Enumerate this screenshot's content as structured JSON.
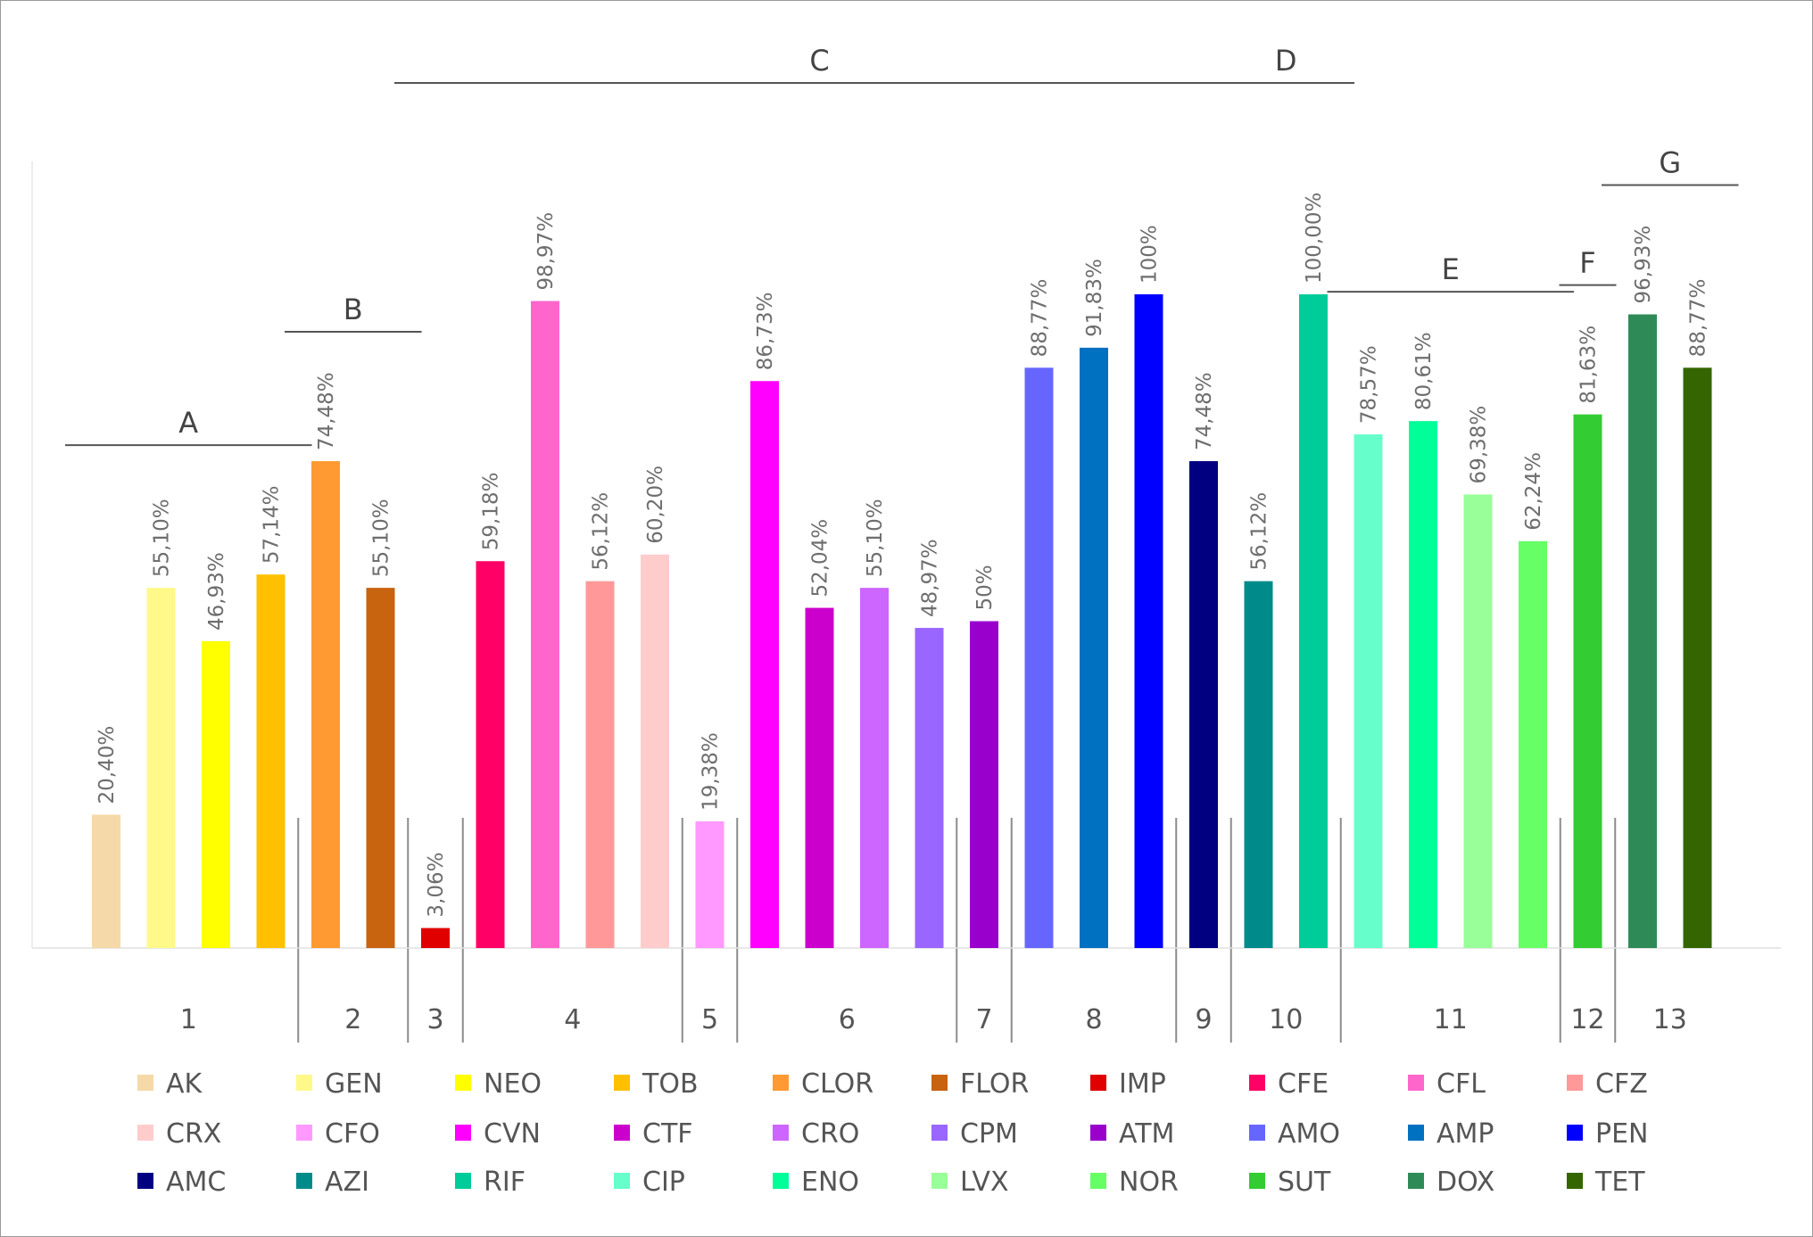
{
  "chart_data": {
    "type": "bar",
    "ylim": [
      0,
      100
    ],
    "grid": false,
    "legend_position": "bottom",
    "categories": [
      "AK",
      "GEN",
      "NEO",
      "TOB",
      "CLOR",
      "FLOR",
      "IMP",
      "CFE",
      "CFL",
      "CFZ",
      "CRX",
      "CFO",
      "CVN",
      "CTF",
      "CRO",
      "CPM",
      "ATM",
      "AMO",
      "AMP",
      "PEN",
      "AMC",
      "AZI",
      "RIF",
      "CIP",
      "ENO",
      "LVX",
      "NOR",
      "SUT",
      "DOX",
      "TET"
    ],
    "values": [
      20.4,
      55.1,
      46.93,
      57.14,
      74.48,
      55.1,
      3.06,
      59.18,
      98.97,
      56.12,
      60.2,
      19.38,
      86.73,
      52.04,
      55.1,
      48.97,
      50,
      88.77,
      91.83,
      100,
      74.48,
      56.12,
      100.0,
      78.57,
      80.61,
      69.38,
      62.24,
      81.63,
      96.93,
      88.77
    ],
    "data_labels": [
      "20,40%",
      "55,10%",
      "46,93%",
      "57,14%",
      "74,48%",
      "55,10%",
      "3,06%",
      "59,18%",
      "98,97%",
      "56,12%",
      "60,20%",
      "19,38%",
      "86,73%",
      "52,04%",
      "55,10%",
      "48,97%",
      "50%",
      "88,77%",
      "91,83%",
      "100%",
      "74,48%",
      "56,12%",
      "100,00%",
      "78,57%",
      "80,61%",
      "69,38%",
      "62,24%",
      "81,63%",
      "96,93%",
      "88,77%"
    ],
    "colors": [
      "#f5d9a8",
      "#fff98a",
      "#ffff00",
      "#ffc000",
      "#ff9a33",
      "#c8630f",
      "#e00000",
      "#ff0066",
      "#ff66cc",
      "#ff9999",
      "#ffcccc",
      "#ff99ff",
      "#ff00ff",
      "#cc00cc",
      "#cc66ff",
      "#9966ff",
      "#9900cc",
      "#6666ff",
      "#0070c0",
      "#0000ff",
      "#000080",
      "#008b8b",
      "#00cc99",
      "#66ffcc",
      "#00ff99",
      "#99ff99",
      "#66ff66",
      "#33cc33",
      "#2e8b57",
      "#336600"
    ],
    "class_numbers": [
      "1",
      "2",
      "3",
      "4",
      "5",
      "6",
      "7",
      "8",
      "9",
      "10",
      "11",
      "12",
      "13"
    ],
    "class_sizes": [
      4,
      2,
      1,
      4,
      1,
      4,
      1,
      3,
      1,
      2,
      4,
      1,
      2
    ],
    "group_brackets": [
      {
        "label": "A",
        "bars": [
          0,
          3
        ]
      },
      {
        "label": "B",
        "bars": [
          4,
          5
        ]
      },
      {
        "label": "C",
        "bars": [
          6,
          20
        ]
      },
      {
        "label": "D",
        "bars": [
          21,
          22
        ]
      },
      {
        "label": "E",
        "bars": [
          23,
          26
        ]
      },
      {
        "label": "F",
        "bars": [
          27,
          27
        ]
      },
      {
        "label": "G",
        "bars": [
          28,
          29
        ]
      }
    ]
  }
}
